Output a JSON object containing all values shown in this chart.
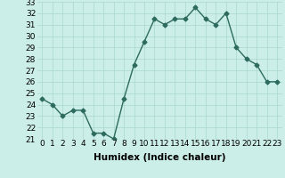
{
  "x": [
    0,
    1,
    2,
    3,
    4,
    5,
    6,
    7,
    8,
    9,
    10,
    11,
    12,
    13,
    14,
    15,
    16,
    17,
    18,
    19,
    20,
    21,
    22,
    23
  ],
  "y": [
    24.5,
    24.0,
    23.0,
    23.5,
    23.5,
    21.5,
    21.5,
    21.0,
    24.5,
    27.5,
    29.5,
    31.5,
    31.0,
    31.5,
    31.5,
    32.5,
    31.5,
    31.0,
    32.0,
    29.0,
    28.0,
    27.5,
    26.0,
    26.0
  ],
  "line_color": "#2d6b5e",
  "marker": "D",
  "marker_size": 2.5,
  "bg_color": "#cceee8",
  "grid_color": "#aad6cf",
  "xlabel": "Humidex (Indice chaleur)",
  "xlim": [
    -0.5,
    23.5
  ],
  "ylim": [
    21,
    33
  ],
  "yticks": [
    21,
    22,
    23,
    24,
    25,
    26,
    27,
    28,
    29,
    30,
    31,
    32,
    33
  ],
  "xticks": [
    0,
    1,
    2,
    3,
    4,
    5,
    6,
    7,
    8,
    9,
    10,
    11,
    12,
    13,
    14,
    15,
    16,
    17,
    18,
    19,
    20,
    21,
    22,
    23
  ],
  "tick_fontsize": 6.5,
  "label_fontsize": 7.5,
  "line_width": 1.0
}
